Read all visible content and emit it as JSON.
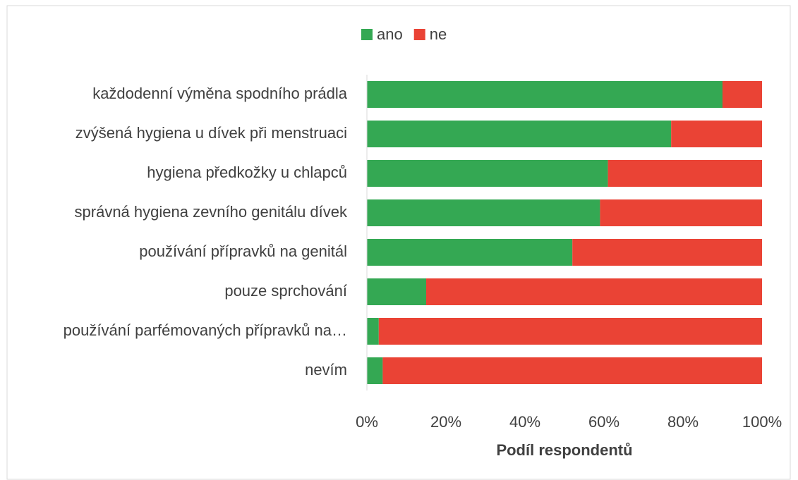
{
  "chart_data": {
    "type": "bar",
    "orientation": "horizontal",
    "stacked": true,
    "categories": [
      "každodenní výměna spodního prádla",
      "zvýšená hygiena u dívek při menstruaci",
      "hygiena předkožky u chlapců",
      "správná hygiena zevního genitálu dívek",
      "používání přípravků na genitál",
      "pouze sprchování",
      "používání parfémovaných přípravků na…",
      "nevím"
    ],
    "series": [
      {
        "name": "ano",
        "color": "#34a853",
        "values": [
          90,
          77,
          61,
          59,
          52,
          15,
          3,
          4
        ]
      },
      {
        "name": "ne",
        "color": "#ea4335",
        "values": [
          10,
          23,
          39,
          41,
          48,
          85,
          97,
          96
        ]
      }
    ],
    "xlim": [
      0,
      100
    ],
    "xticks": [
      {
        "value": 0,
        "label": "0%"
      },
      {
        "value": 20,
        "label": "20%"
      },
      {
        "value": 40,
        "label": "40%"
      },
      {
        "value": 60,
        "label": "60%"
      },
      {
        "value": 80,
        "label": "80%"
      },
      {
        "value": 100,
        "label": "100%"
      }
    ],
    "xlabel": "Podíl respondentů",
    "legend": "top"
  }
}
